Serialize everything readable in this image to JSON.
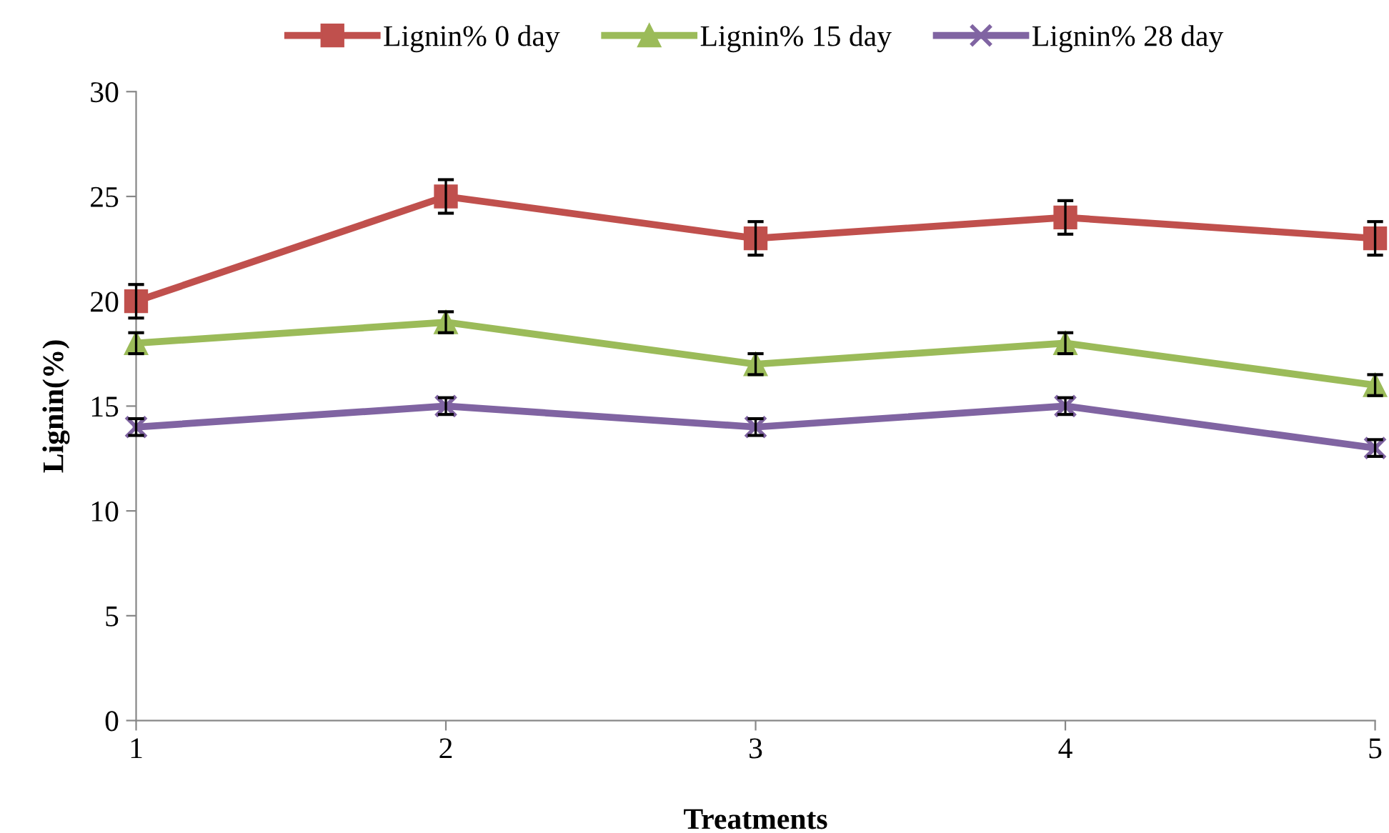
{
  "chart_data": {
    "type": "line",
    "xlabel": "Treatments",
    "ylabel": "Lignin(%)",
    "x": [
      1,
      2,
      3,
      4,
      5
    ],
    "xlim": [
      1,
      5
    ],
    "xticks": [
      1,
      2,
      3,
      4,
      5
    ],
    "ylim": [
      0,
      30
    ],
    "yticks": [
      0,
      5,
      10,
      15,
      20,
      25,
      30
    ],
    "grid": false,
    "legend": "top",
    "line_style": "solid",
    "series": [
      {
        "name": "Lignin% 0 day",
        "color": "#c0504d",
        "marker": "square",
        "values": [
          20,
          25,
          23,
          24,
          23
        ],
        "errors": [
          0.8,
          0.8,
          0.8,
          0.8,
          0.8
        ]
      },
      {
        "name": "Lignin% 15 day",
        "color": "#9bbb59",
        "marker": "triangle",
        "values": [
          18,
          19,
          17,
          18,
          16
        ],
        "errors": [
          0.5,
          0.5,
          0.5,
          0.5,
          0.5
        ]
      },
      {
        "name": "Lignin% 28 day",
        "color": "#8064a2",
        "marker": "cross",
        "values": [
          14,
          15,
          14,
          15,
          13
        ],
        "errors": [
          0.4,
          0.4,
          0.4,
          0.4,
          0.4
        ]
      }
    ]
  }
}
